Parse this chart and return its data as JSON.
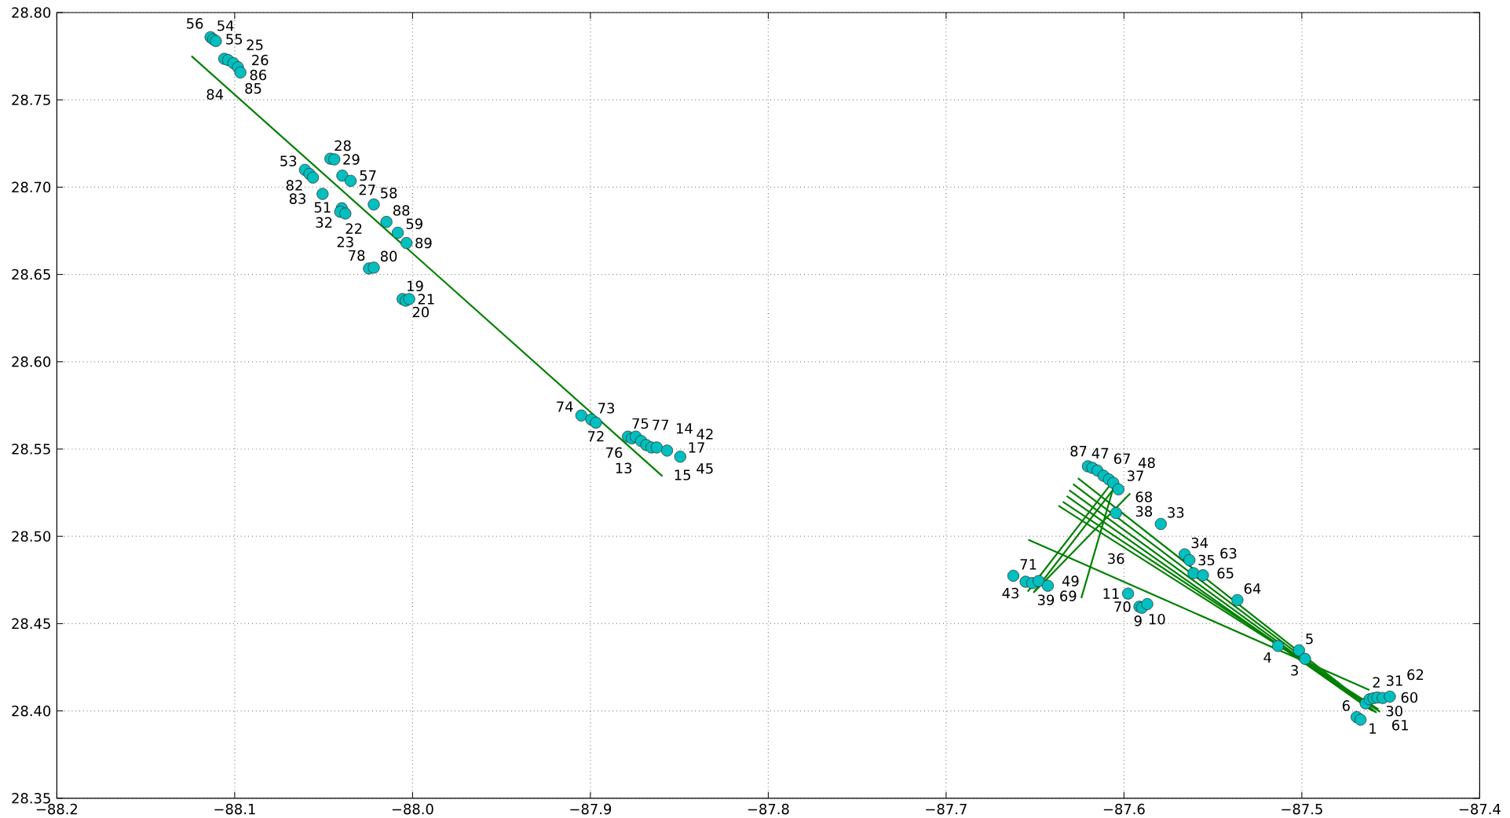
{
  "chart_data": {
    "type": "scatter",
    "grid": true,
    "xlim": [
      -88.2,
      -87.4
    ],
    "ylim": [
      28.35,
      28.8
    ],
    "xticks": [
      {
        "value": -88.2,
        "label": "−88.2"
      },
      {
        "value": -88.1,
        "label": "−88.1"
      },
      {
        "value": -88.0,
        "label": "−88.0"
      },
      {
        "value": -87.9,
        "label": "−87.9"
      },
      {
        "value": -87.8,
        "label": "−87.8"
      },
      {
        "value": -87.7,
        "label": "−87.7"
      },
      {
        "value": -87.6,
        "label": "−87.6"
      },
      {
        "value": -87.5,
        "label": "−87.5"
      },
      {
        "value": -87.4,
        "label": "−87.4"
      }
    ],
    "yticks": [
      28.35,
      {
        "value": 28.4,
        "label": "28.40"
      },
      28.45,
      {
        "value": 28.5,
        "label": "28.50"
      },
      28.55,
      {
        "value": 28.6,
        "label": "28.60"
      },
      28.65,
      {
        "value": 28.7,
        "label": "28.70"
      },
      28.75,
      {
        "value": 28.8,
        "label": "28.80"
      }
    ],
    "series": [
      {
        "type": "line",
        "color": "#008000",
        "x": [
          -88.1243,
          -87.8595
        ],
        "values": [
          28.7751,
          28.5344
        ]
      },
      {
        "type": "line",
        "color": "#008000",
        "x": [
          -87.6259,
          -87.458
        ],
        "values": [
          28.5333,
          28.399
        ]
      },
      {
        "type": "line",
        "color": "#008000",
        "x": [
          -87.6286,
          -87.459
        ],
        "values": [
          28.5299,
          28.3995
        ]
      },
      {
        "type": "line",
        "color": "#008000",
        "x": [
          -87.6308,
          -87.46
        ],
        "values": [
          28.5264,
          28.4
        ]
      },
      {
        "type": "line",
        "color": "#008000",
        "x": [
          -87.6322,
          -87.461
        ],
        "values": [
          28.5231,
          28.4005
        ]
      },
      {
        "type": "line",
        "color": "#008000",
        "x": [
          -87.6344,
          -87.456
        ],
        "values": [
          28.5198,
          28.3995
        ]
      },
      {
        "type": "line",
        "color": "#008000",
        "x": [
          -87.6369,
          -87.457
        ],
        "values": [
          28.5176,
          28.401
        ]
      },
      {
        "type": "line",
        "color": "#008000",
        "x": [
          -87.6538,
          -87.462
        ],
        "values": [
          28.4981,
          28.412
        ]
      },
      {
        "type": "line",
        "color": "#008000",
        "x": [
          -87.6541,
          -87.6083
        ],
        "values": [
          28.4684,
          28.5287
        ]
      },
      {
        "type": "line",
        "color": "#008000",
        "x": [
          -87.6509,
          -87.606
        ],
        "values": [
          28.4677,
          28.5269
        ]
      },
      {
        "type": "line",
        "color": "#008000",
        "x": [
          -87.6502,
          -87.5965
        ],
        "values": [
          28.4684,
          28.5246
        ]
      },
      {
        "type": "line",
        "color": "#008000",
        "x": [
          -87.624,
          -87.606
        ],
        "values": [
          28.4646,
          28.5276
        ]
      },
      {
        "color": "#00bfbf",
        "marker": "circle",
        "x": [
          -88.1136,
          -88.1121,
          -88.1106,
          -88.1059,
          -88.1037,
          -88.1007,
          -88.0982,
          -88.0968,
          -88.0462,
          -88.044,
          -88.0605,
          -88.058,
          -88.056,
          -88.0395,
          -88.0348,
          -88.0506,
          -88.0398,
          -88.0407,
          -88.0378,
          -88.0218,
          -88.0147,
          -88.0083,
          -88.0034,
          -88.0245,
          -88.0218,
          -88.0056,
          -88.0038,
          -88.0019,
          -87.9051,
          -87.8995,
          -87.8969,
          -87.8789,
          -87.8767,
          -87.8745,
          -87.8715,
          -87.8686,
          -87.8657,
          -87.8627,
          -87.8569,
          -87.8495,
          -87.6203,
          -87.6178,
          -87.6149,
          -87.6115,
          -87.6085,
          -87.606,
          -87.6031,
          -87.6045,
          -87.5793,
          -87.5659,
          -87.5632,
          -87.5609,
          -87.5556,
          -87.5362,
          -87.6622,
          -87.6553,
          -87.6516,
          -87.648,
          -87.6428,
          -87.5977,
          -87.5913,
          -87.5899,
          -87.5869,
          -87.5134,
          -87.5016,
          -87.4982,
          -87.4692,
          -87.467,
          -87.4641,
          -87.4619,
          -87.4597,
          -87.4575,
          -87.4545,
          -87.4505
        ],
        "values": [
          28.7859,
          28.7847,
          28.7837,
          28.7735,
          28.7728,
          28.771,
          28.7687,
          28.7657,
          28.7163,
          28.7159,
          28.7099,
          28.7076,
          28.7055,
          28.7066,
          28.7036,
          28.6961,
          28.6879,
          28.6859,
          28.6849,
          28.6901,
          28.6801,
          28.6739,
          28.668,
          28.6534,
          28.6539,
          28.6359,
          28.635,
          28.6359,
          28.5692,
          28.5669,
          28.5651,
          28.5571,
          28.5561,
          28.5571,
          28.5546,
          28.5523,
          28.5509,
          28.5509,
          28.5491,
          28.5456,
          28.5401,
          28.5392,
          28.5377,
          28.5347,
          28.5326,
          28.5306,
          28.5269,
          28.5134,
          28.5071,
          28.4897,
          28.4864,
          28.4789,
          28.4777,
          28.4635,
          28.4774,
          28.474,
          28.4732,
          28.4744,
          28.4717,
          28.4672,
          28.4597,
          28.4591,
          28.4612,
          28.4372,
          28.4347,
          28.4298,
          28.3965,
          28.395,
          28.4043,
          28.4067,
          28.4073,
          28.4077,
          28.4074,
          28.4082
        ]
      }
    ],
    "annotations": [
      {
        "text": "54",
        "x": -88.1136,
        "y": 28.7859
      },
      {
        "text": "55",
        "x": -88.1121,
        "y": 28.7847
      },
      {
        "text": "56",
        "x": -88.1106,
        "y": 28.7837
      },
      {
        "text": "25",
        "x": -88.1059,
        "y": 28.7735
      },
      {
        "text": "26",
        "x": -88.1037,
        "y": 28.7728
      },
      {
        "text": "86",
        "x": -88.1007,
        "y": 28.771
      },
      {
        "text": "85",
        "x": -88.0982,
        "y": 28.7687
      },
      {
        "text": "84",
        "x": -88.0968,
        "y": 28.7657
      },
      {
        "text": "28",
        "x": -88.0462,
        "y": 28.7163
      },
      {
        "text": "29",
        "x": -88.044,
        "y": 28.7159
      },
      {
        "text": "53",
        "x": -88.0605,
        "y": 28.7099
      },
      {
        "text": "82",
        "x": -88.058,
        "y": 28.7076
      },
      {
        "text": "83",
        "x": -88.056,
        "y": 28.7055
      },
      {
        "text": "57",
        "x": -88.0395,
        "y": 28.7066
      },
      {
        "text": "27",
        "x": -88.0348,
        "y": 28.7036
      },
      {
        "text": "51",
        "x": -88.0506,
        "y": 28.6961
      },
      {
        "text": "32",
        "x": -88.0398,
        "y": 28.6879
      },
      {
        "text": "22",
        "x": -88.0407,
        "y": 28.6859
      },
      {
        "text": "23",
        "x": -88.0378,
        "y": 28.6849
      },
      {
        "text": "58",
        "x": -88.0218,
        "y": 28.6901
      },
      {
        "text": "88",
        "x": -88.0147,
        "y": 28.6801
      },
      {
        "text": "59",
        "x": -88.0083,
        "y": 28.6739
      },
      {
        "text": "89",
        "x": -88.0034,
        "y": 28.668
      },
      {
        "text": "78",
        "x": -88.0245,
        "y": 28.6534
      },
      {
        "text": "80",
        "x": -88.0218,
        "y": 28.6539
      },
      {
        "text": "19",
        "x": -88.0056,
        "y": 28.6359
      },
      {
        "text": "20",
        "x": -88.0038,
        "y": 28.635
      },
      {
        "text": "21",
        "x": -88.0019,
        "y": 28.6359
      },
      {
        "text": "74",
        "x": -87.9051,
        "y": 28.5692
      },
      {
        "text": "73",
        "x": -87.8995,
        "y": 28.5669
      },
      {
        "text": "72",
        "x": -87.8969,
        "y": 28.5651
      },
      {
        "text": "75",
        "x": -87.8789,
        "y": 28.5571
      },
      {
        "text": "76",
        "x": -87.8767,
        "y": 28.5561
      },
      {
        "text": "77",
        "x": -87.8745,
        "y": 28.5571
      },
      {
        "text": "13",
        "x": -87.8715,
        "y": 28.5546
      },
      {
        "text": "14",
        "x": -87.8686,
        "y": 28.5523
      },
      {
        "text": "15",
        "x": -87.8657,
        "y": 28.5509
      },
      {
        "text": "17",
        "x": -87.8627,
        "y": 28.5509
      },
      {
        "text": "42",
        "x": -87.8569,
        "y": 28.5491
      },
      {
        "text": "45",
        "x": -87.8495,
        "y": 28.5456
      },
      {
        "text": "47",
        "x": -87.6203,
        "y": 28.5401
      },
      {
        "text": "87",
        "x": -87.6178,
        "y": 28.5392
      },
      {
        "text": "67",
        "x": -87.6149,
        "y": 28.5377
      },
      {
        "text": "37",
        "x": -87.6115,
        "y": 28.5347
      },
      {
        "text": "48",
        "x": -87.6085,
        "y": 28.5326
      },
      {
        "text": "68",
        "x": -87.606,
        "y": 28.5306
      },
      {
        "text": "38",
        "x": -87.6031,
        "y": 28.5269
      },
      {
        "text": "36",
        "x": -87.6045,
        "y": 28.5134
      },
      {
        "text": "33",
        "x": -87.5793,
        "y": 28.5071
      },
      {
        "text": "34",
        "x": -87.5659,
        "y": 28.4897
      },
      {
        "text": "35",
        "x": -87.5632,
        "y": 28.4864
      },
      {
        "text": "65",
        "x": -87.5609,
        "y": 28.4789
      },
      {
        "text": "63",
        "x": -87.5556,
        "y": 28.4777
      },
      {
        "text": "64",
        "x": -87.5362,
        "y": 28.4635
      },
      {
        "text": "71",
        "x": -87.6622,
        "y": 28.4774
      },
      {
        "text": "43",
        "x": -87.6553,
        "y": 28.474
      },
      {
        "text": "39",
        "x": -87.6516,
        "y": 28.4732
      },
      {
        "text": "49",
        "x": -87.648,
        "y": 28.4744
      },
      {
        "text": "69",
        "x": -87.6428,
        "y": 28.4717
      },
      {
        "text": "11",
        "x": -87.5977,
        "y": 28.4672
      },
      {
        "text": "70",
        "x": -87.5913,
        "y": 28.4597
      },
      {
        "text": "10",
        "x": -87.5899,
        "y": 28.4591
      },
      {
        "text": "9",
        "x": -87.5869,
        "y": 28.4612
      },
      {
        "text": "4",
        "x": -87.5134,
        "y": 28.4372
      },
      {
        "text": "5",
        "x": -87.5016,
        "y": 28.4347
      },
      {
        "text": "3",
        "x": -87.4982,
        "y": 28.4298
      },
      {
        "text": "6",
        "x": -87.4692,
        "y": 28.3965
      },
      {
        "text": "1",
        "x": -87.467,
        "y": 28.395
      },
      {
        "text": "2",
        "x": -87.4641,
        "y": 28.4043
      },
      {
        "text": "30",
        "x": -87.4619,
        "y": 28.4067
      },
      {
        "text": "31",
        "x": -87.4597,
        "y": 28.4073
      },
      {
        "text": "60",
        "x": -87.4575,
        "y": 28.4077
      },
      {
        "text": "61",
        "x": -87.4545,
        "y": 28.4074
      },
      {
        "text": "62",
        "x": -87.4505,
        "y": 28.4082
      }
    ]
  }
}
